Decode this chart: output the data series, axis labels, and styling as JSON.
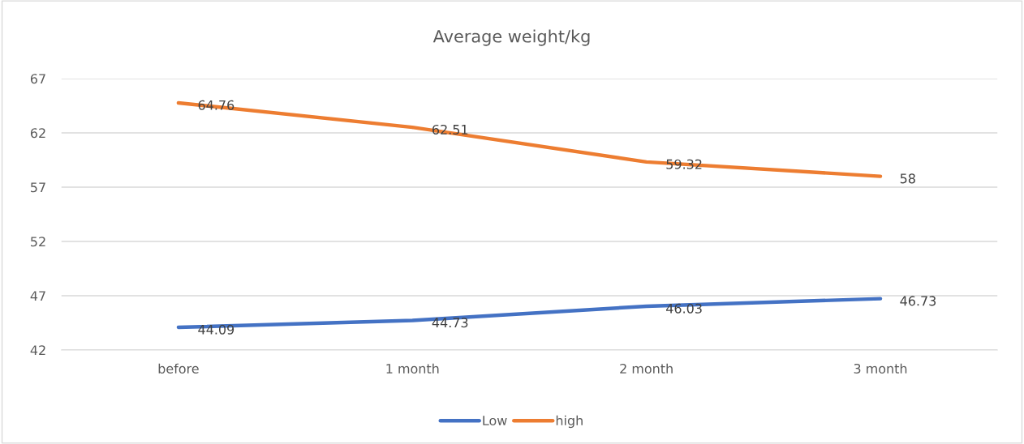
{
  "chart_data": {
    "type": "line",
    "title": "Average weight/kg",
    "categories": [
      "before",
      "1 month",
      "2 month",
      "3 month"
    ],
    "series": [
      {
        "name": "Low",
        "color": "#4472c4",
        "values": [
          44.09,
          44.73,
          46.03,
          46.73
        ]
      },
      {
        "name": "high",
        "color": "#ed7d31",
        "values": [
          64.76,
          62.51,
          59.32,
          58
        ]
      }
    ],
    "ylim": [
      42,
      67
    ],
    "yticks": [
      42,
      47,
      52,
      57,
      62,
      67
    ],
    "grid": "y",
    "legend": "bottom",
    "data_labels": true,
    "marker": "none",
    "line_style": "solid"
  }
}
